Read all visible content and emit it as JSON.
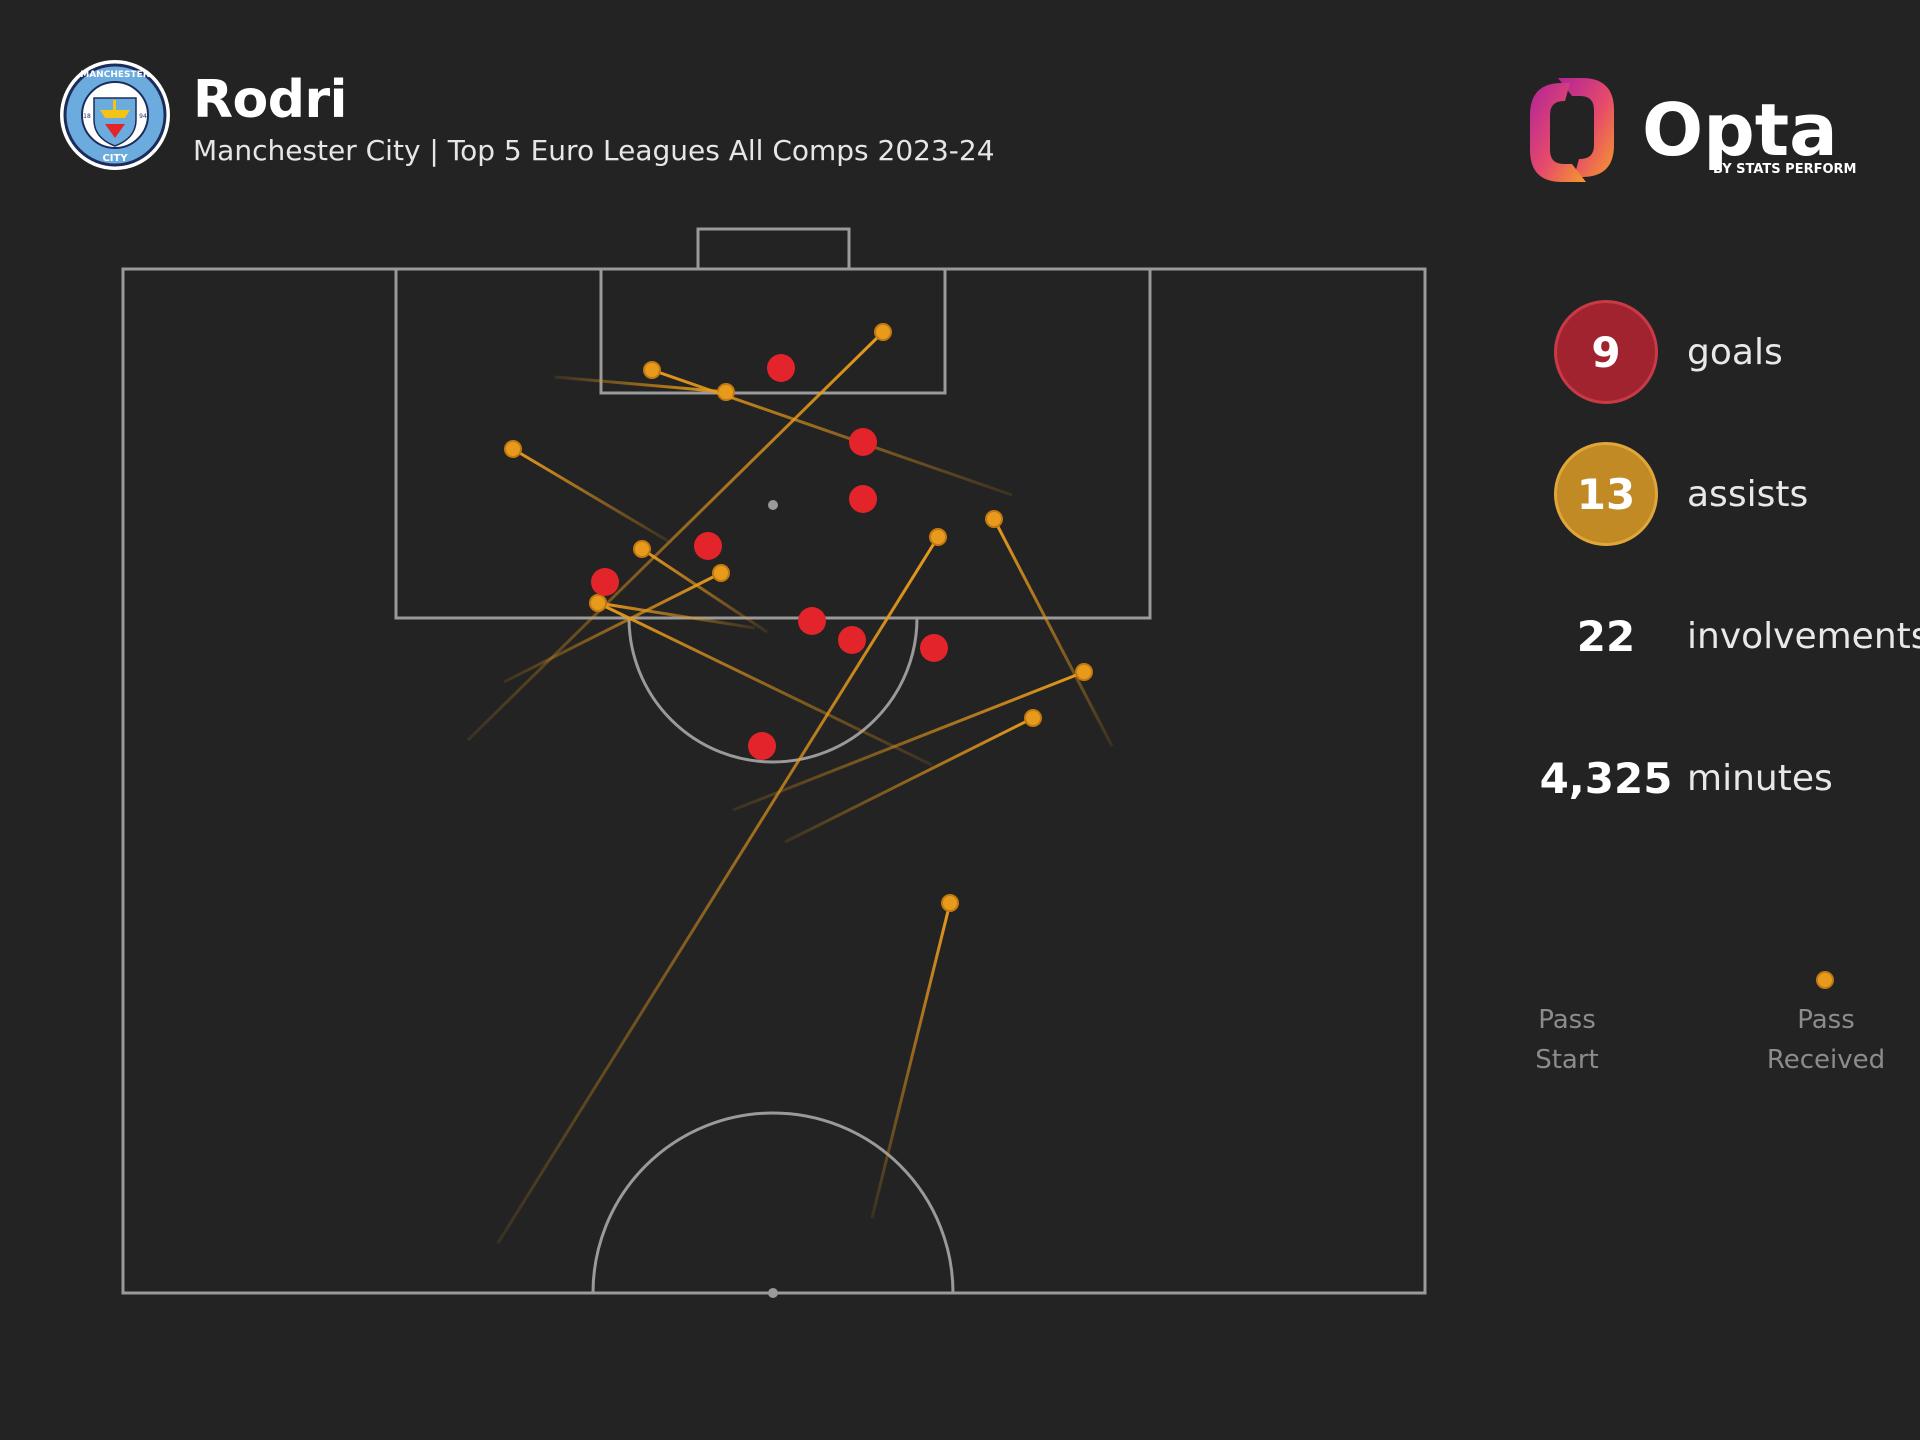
{
  "header": {
    "player_name": "Rodri",
    "subtitle": "Manchester City | Top 5 Euro Leagues All Comps 2023-24"
  },
  "crest": {
    "icon": "manchester-city-crest",
    "text_top": "MANCHESTER",
    "text_bottom": "CITY",
    "year_left": "18",
    "year_right": "94"
  },
  "brand": {
    "icon": "opta-logo",
    "name": "Opta",
    "tagline": "BY STATS PERFORM"
  },
  "stats": {
    "goals": {
      "value": "9",
      "label": "goals",
      "color": "#a1232f"
    },
    "assists": {
      "value": "13",
      "label": "assists",
      "color": "#c28a24"
    },
    "involvements": {
      "value": "22",
      "label": "involvements"
    },
    "minutes": {
      "value": "4,325",
      "label": "minutes"
    }
  },
  "legend": {
    "start_line1": "Pass",
    "start_line2": "Start",
    "end_line1": "Pass",
    "end_line2": "Received"
  },
  "colors": {
    "background": "#232323",
    "pitch_lines": "#9a9a9a",
    "goal_marker": "#e3242b",
    "assist_line": "#e89a1c"
  }
}
